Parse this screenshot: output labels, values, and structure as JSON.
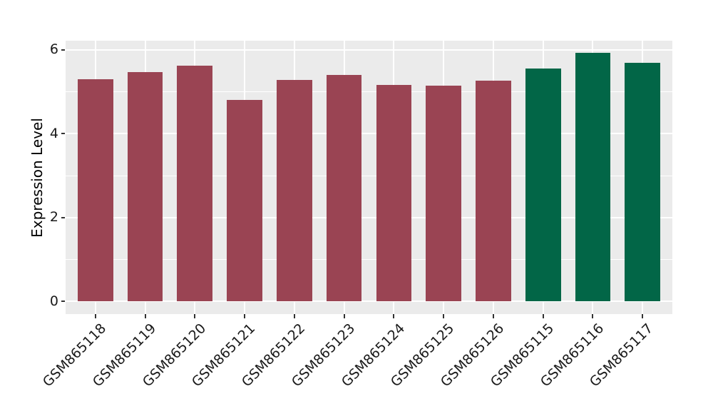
{
  "chart_data": {
    "type": "bar",
    "title": "",
    "xlabel": "",
    "ylabel": "Expression Level",
    "categories": [
      "GSM865118",
      "GSM865119",
      "GSM865120",
      "GSM865121",
      "GSM865122",
      "GSM865123",
      "GSM865124",
      "GSM865125",
      "GSM865126",
      "GSM865115",
      "GSM865116",
      "GSM865117"
    ],
    "values": [
      5.3,
      5.47,
      5.62,
      4.8,
      5.28,
      5.4,
      5.16,
      5.15,
      5.27,
      5.56,
      5.93,
      5.69
    ],
    "bar_colors": [
      "#9A4453",
      "#9A4453",
      "#9A4453",
      "#9A4453",
      "#9A4453",
      "#9A4453",
      "#9A4453",
      "#9A4453",
      "#9A4453",
      "#026647",
      "#026647",
      "#026647"
    ],
    "group_colors": {
      "maroon_group": "#9A4453",
      "green_group": "#026647"
    },
    "ylim": [
      -0.3,
      6.22
    ],
    "yticks_major": [
      0,
      2,
      4,
      6
    ],
    "yticks_minor": [
      1,
      3,
      5
    ],
    "grid": "on",
    "legend_position": "none",
    "panel_background": "#EBEBEB",
    "grid_color": "#FFFFFF",
    "tick_color": "#333333"
  }
}
